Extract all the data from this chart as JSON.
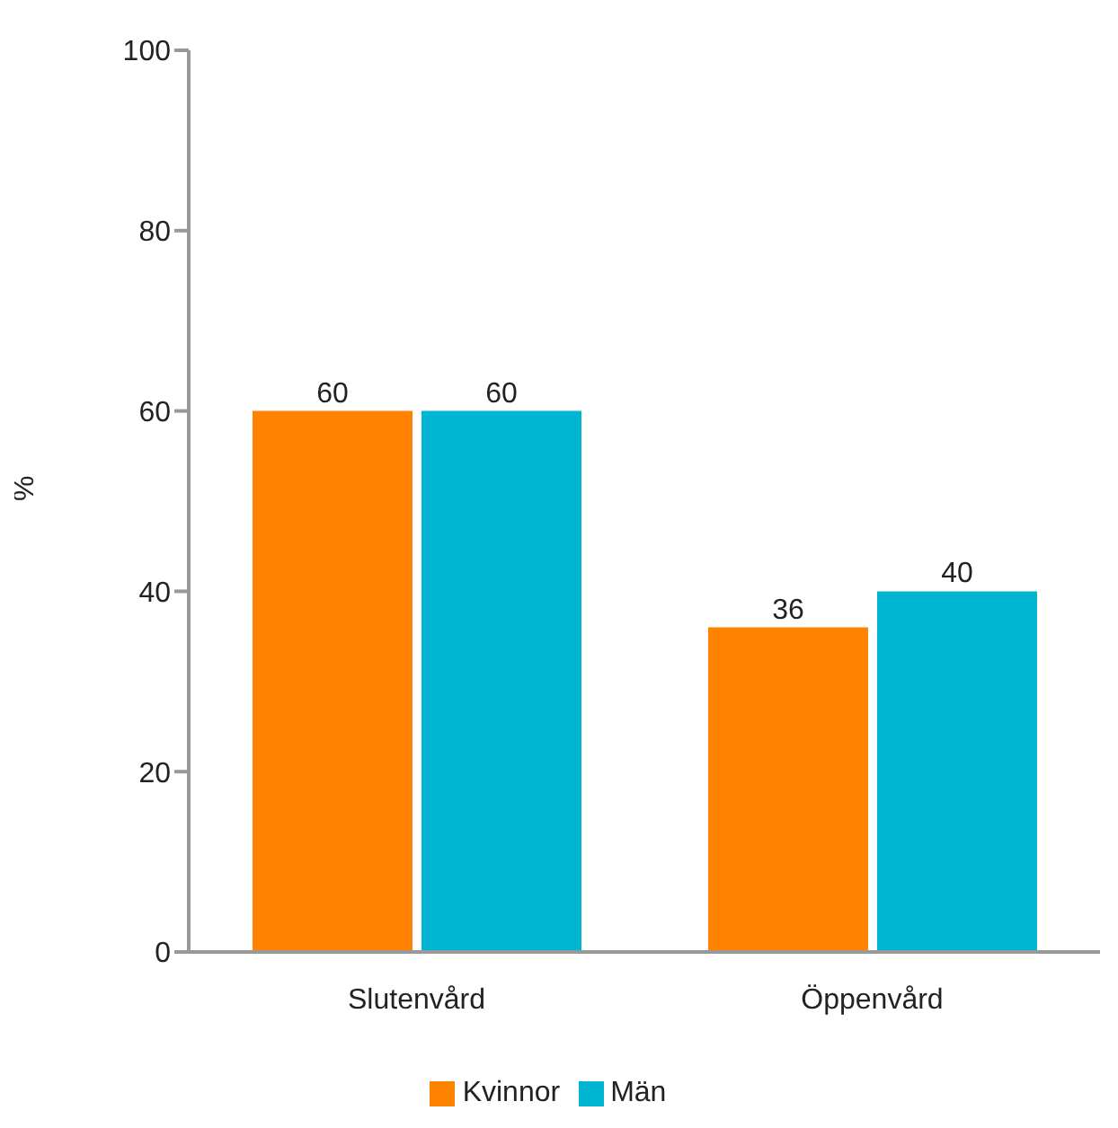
{
  "chart_data": {
    "type": "bar",
    "ylabel": "%",
    "categories": [
      "Slutenvård",
      "Öppenvård"
    ],
    "series": [
      {
        "name": "Kvinnor",
        "color": "#ff8200",
        "values": [
          60,
          36
        ]
      },
      {
        "name": "Män",
        "color": "#00b5d1",
        "values": [
          60,
          40
        ]
      }
    ],
    "ylim": [
      0,
      100
    ],
    "yticks": [
      0,
      20,
      40,
      60,
      80,
      100
    ],
    "grid": false,
    "legend": "bottom",
    "data_labels": true
  }
}
